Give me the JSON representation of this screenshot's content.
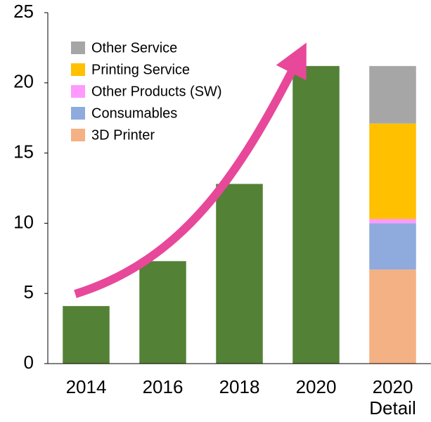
{
  "chart_data": {
    "type": "bar",
    "categories": [
      "2014",
      "2016",
      "2018",
      "2020",
      "2020 Detail"
    ],
    "values": [
      4.1,
      7.3,
      12.8,
      21.2,
      null
    ],
    "color": "#538135",
    "series": [
      {
        "name": "3D Printer",
        "color": "#f4b183",
        "values": [
          null,
          null,
          null,
          null,
          6.7
        ]
      },
      {
        "name": "Consumables",
        "color": "#8faadc",
        "values": [
          null,
          null,
          null,
          null,
          3.3
        ]
      },
      {
        "name": "Other Products (SW)",
        "color": "#ff99ff",
        "values": [
          null,
          null,
          null,
          null,
          0.3
        ]
      },
      {
        "name": "Printing Service",
        "color": "#ffc000",
        "values": [
          null,
          null,
          null,
          null,
          6.8
        ]
      },
      {
        "name": "Other Service",
        "color": "#a6a6a6",
        "values": [
          null,
          null,
          null,
          null,
          4.1
        ]
      }
    ],
    "ylim": [
      0,
      25
    ],
    "yticks": [
      0,
      5,
      10,
      15,
      20,
      25
    ],
    "grid": false,
    "legend": "upper left"
  }
}
